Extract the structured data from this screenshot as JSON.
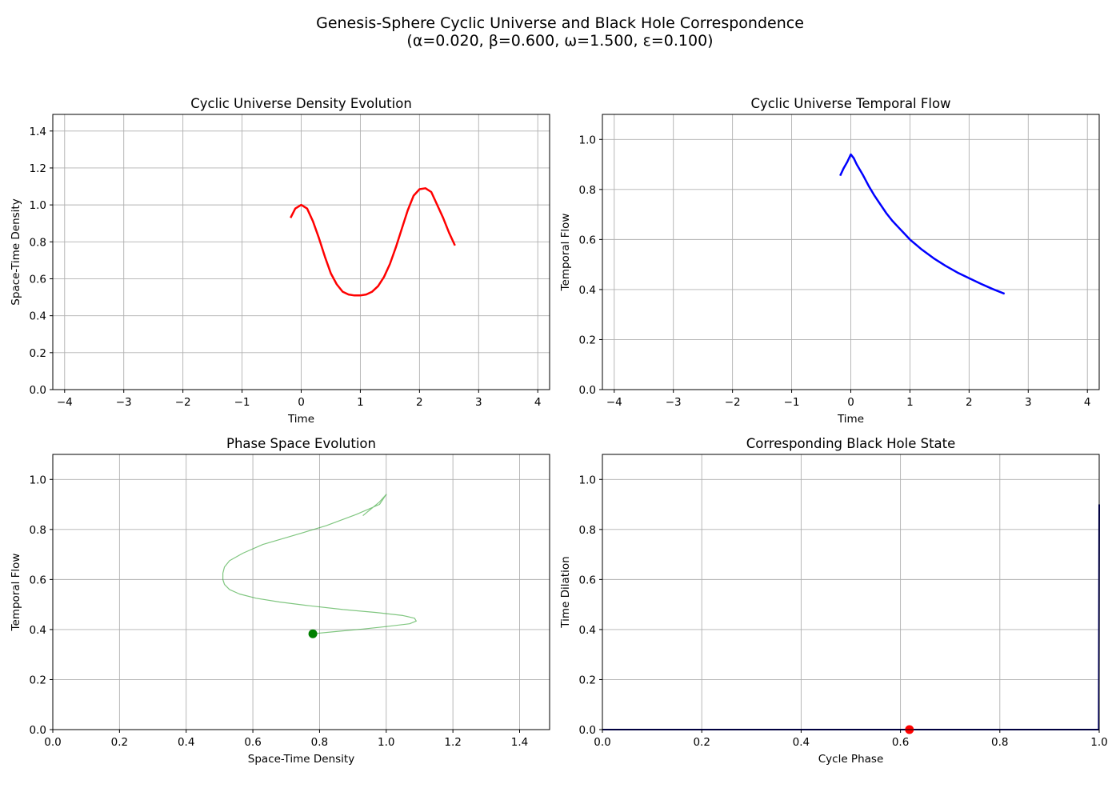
{
  "figure": {
    "title_line1": "Genesis-Sphere Cyclic Universe and Black Hole Correspondence",
    "title_line2": "(α=0.020, β=0.600, ω=1.500, ε=0.100)"
  },
  "chart_data": [
    {
      "type": "line",
      "title": "Cyclic Universe Density Evolution",
      "xlabel": "Time",
      "ylabel": "Space-Time Density",
      "xlim": [
        -4.2,
        4.2
      ],
      "ylim": [
        0.0,
        1.49
      ],
      "xticks": [
        -4,
        -3,
        -2,
        -1,
        0,
        1,
        2,
        3,
        4
      ],
      "yticks": [
        0.0,
        0.2,
        0.4,
        0.6,
        0.8,
        1.0,
        1.2,
        1.4
      ],
      "xtick_labels": [
        "−4",
        "−3",
        "−2",
        "−1",
        "0",
        "1",
        "2",
        "3",
        "4"
      ],
      "ytick_labels": [
        "0.0",
        "0.2",
        "0.4",
        "0.6",
        "0.8",
        "1.0",
        "1.2",
        "1.4"
      ],
      "grid": true,
      "series": [
        {
          "color": "#ff0000",
          "line_width": 2.5,
          "x": [
            -0.18,
            -0.1,
            0.0,
            0.1,
            0.2,
            0.3,
            0.4,
            0.5,
            0.6,
            0.7,
            0.8,
            0.9,
            1.0,
            1.1,
            1.2,
            1.3,
            1.4,
            1.5,
            1.6,
            1.7,
            1.8,
            1.9,
            2.0,
            2.1,
            2.2,
            2.3,
            2.4,
            2.5,
            2.6
          ],
          "y": [
            0.93,
            0.98,
            1.0,
            0.98,
            0.91,
            0.82,
            0.72,
            0.63,
            0.57,
            0.53,
            0.515,
            0.51,
            0.51,
            0.515,
            0.53,
            0.56,
            0.61,
            0.68,
            0.77,
            0.87,
            0.97,
            1.05,
            1.085,
            1.09,
            1.07,
            1.0,
            0.93,
            0.85,
            0.78
          ]
        }
      ]
    },
    {
      "type": "line",
      "title": "Cyclic Universe Temporal Flow",
      "xlabel": "Time",
      "ylabel": "Temporal Flow",
      "xlim": [
        -4.2,
        4.2
      ],
      "ylim": [
        0.0,
        1.1
      ],
      "xticks": [
        -4,
        -3,
        -2,
        -1,
        0,
        1,
        2,
        3,
        4
      ],
      "yticks": [
        0.0,
        0.2,
        0.4,
        0.6,
        0.8,
        1.0
      ],
      "xtick_labels": [
        "−4",
        "−3",
        "−2",
        "−1",
        "0",
        "1",
        "2",
        "3",
        "4"
      ],
      "ytick_labels": [
        "0.0",
        "0.2",
        "0.4",
        "0.6",
        "0.8",
        "1.0"
      ],
      "grid": true,
      "series": [
        {
          "color": "#0000ff",
          "line_width": 2.5,
          "x": [
            -0.18,
            -0.12,
            -0.06,
            0.0,
            0.05,
            0.1,
            0.2,
            0.3,
            0.4,
            0.5,
            0.6,
            0.7,
            0.8,
            0.9,
            1.0,
            1.2,
            1.4,
            1.6,
            1.8,
            2.0,
            2.2,
            2.4,
            2.6
          ],
          "y": [
            0.855,
            0.885,
            0.91,
            0.94,
            0.925,
            0.9,
            0.86,
            0.815,
            0.775,
            0.74,
            0.705,
            0.675,
            0.65,
            0.625,
            0.6,
            0.56,
            0.525,
            0.495,
            0.468,
            0.445,
            0.423,
            0.402,
            0.383
          ]
        }
      ]
    },
    {
      "type": "line",
      "title": "Phase Space Evolution",
      "xlabel": "Space-Time Density",
      "ylabel": "Temporal Flow",
      "xlim": [
        0.0,
        1.49
      ],
      "ylim": [
        0.0,
        1.1
      ],
      "xticks": [
        0.0,
        0.2,
        0.4,
        0.6,
        0.8,
        1.0,
        1.2,
        1.4
      ],
      "yticks": [
        0.0,
        0.2,
        0.4,
        0.6,
        0.8,
        1.0
      ],
      "xtick_labels": [
        "0.0",
        "0.2",
        "0.4",
        "0.6",
        "0.8",
        "1.0",
        "1.2",
        "1.4"
      ],
      "ytick_labels": [
        "0.0",
        "0.2",
        "0.4",
        "0.6",
        "0.8",
        "1.0"
      ],
      "grid": true,
      "series": [
        {
          "color": "#2ca02c",
          "opacity": 0.6,
          "line_width": 1.2,
          "x": [
            0.93,
            0.98,
            1.0,
            0.98,
            0.91,
            0.82,
            0.72,
            0.63,
            0.57,
            0.53,
            0.515,
            0.51,
            0.51,
            0.515,
            0.53,
            0.56,
            0.61,
            0.68,
            0.77,
            0.87,
            0.97,
            1.05,
            1.085,
            1.09,
            1.07,
            1.0,
            0.93,
            0.85,
            0.78
          ],
          "y": [
            0.855,
            0.91,
            0.94,
            0.9,
            0.86,
            0.815,
            0.775,
            0.74,
            0.705,
            0.675,
            0.65,
            0.625,
            0.6,
            0.58,
            0.56,
            0.542,
            0.525,
            0.51,
            0.495,
            0.48,
            0.468,
            0.456,
            0.445,
            0.434,
            0.423,
            0.412,
            0.402,
            0.392,
            0.383
          ]
        }
      ],
      "marker": {
        "x": 0.78,
        "y": 0.383,
        "color": "#008000"
      }
    },
    {
      "type": "line",
      "title": "Corresponding Black Hole State",
      "xlabel": "Cycle Phase",
      "ylabel": "Time Dilation",
      "xlim": [
        0.0,
        1.0
      ],
      "ylim": [
        0.0,
        1.1
      ],
      "xticks": [
        0.0,
        0.2,
        0.4,
        0.6,
        0.8,
        1.0
      ],
      "yticks": [
        0.0,
        0.2,
        0.4,
        0.6,
        0.8,
        1.0
      ],
      "xtick_labels": [
        "0.0",
        "0.2",
        "0.4",
        "0.6",
        "0.8",
        "1.0"
      ],
      "ytick_labels": [
        "0.0",
        "0.2",
        "0.4",
        "0.6",
        "0.8",
        "1.0"
      ],
      "grid": true,
      "series": [
        {
          "color": "#000080",
          "line_width": 2.0,
          "x": [
            0.0,
            0.2,
            0.4,
            0.6,
            0.8,
            0.999,
            1.0
          ],
          "y": [
            0.0,
            0.0,
            0.0,
            0.0,
            0.0,
            0.0,
            0.9
          ]
        }
      ],
      "marker": {
        "x": 0.618,
        "y": 0.0,
        "color": "#ff0000"
      }
    }
  ]
}
